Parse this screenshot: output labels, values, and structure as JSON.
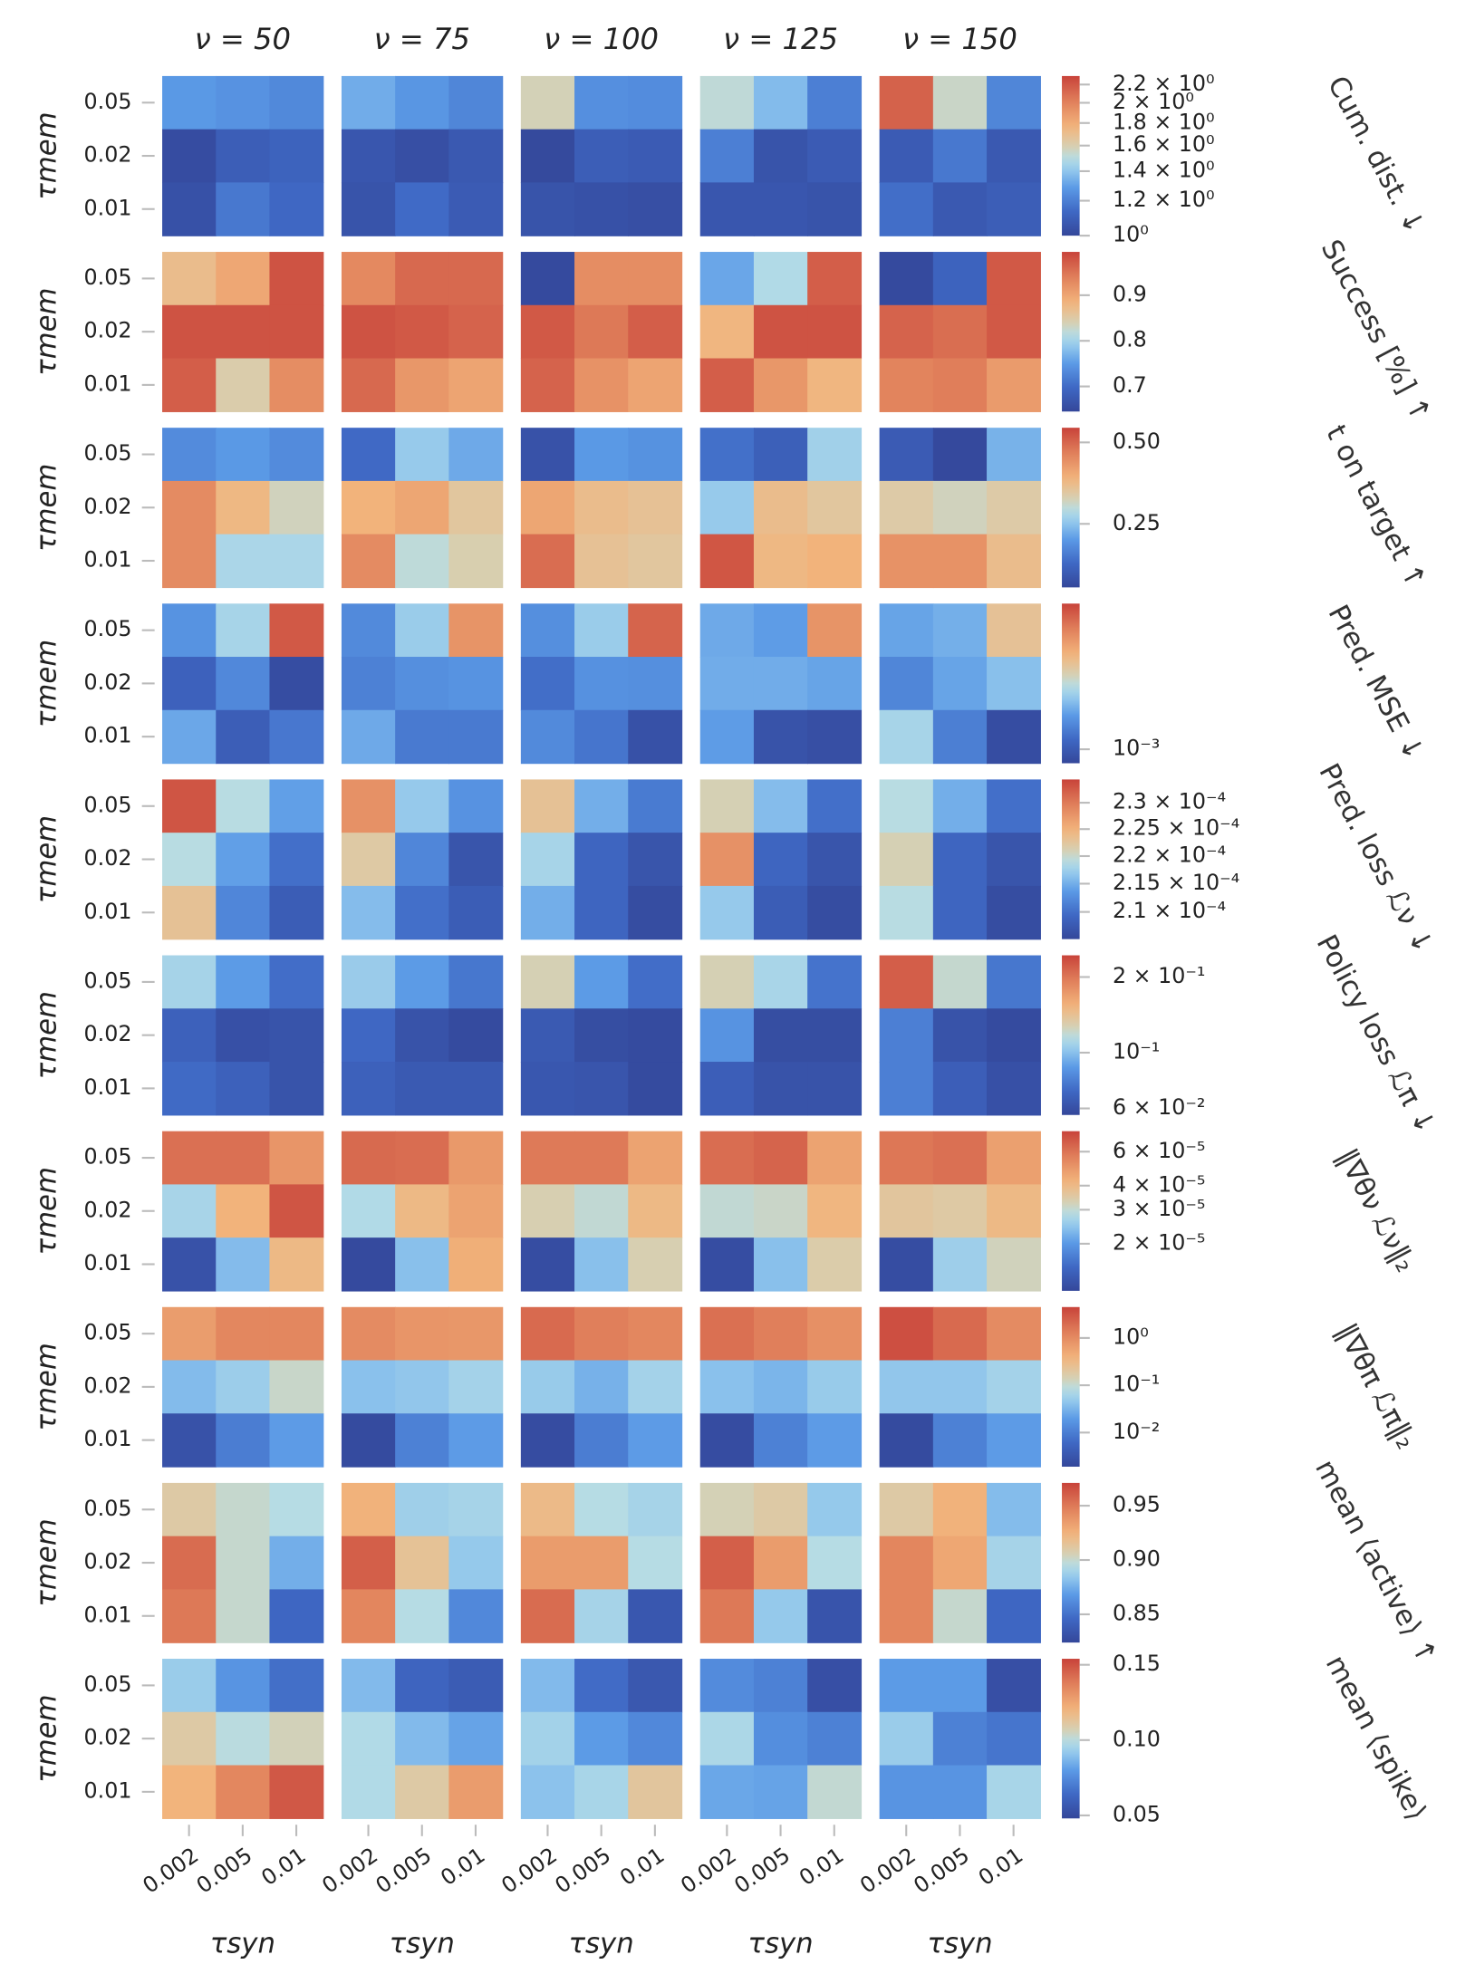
{
  "columns": [
    "ν = 50",
    "ν = 75",
    "ν = 100",
    "ν = 125",
    "ν = 150"
  ],
  "x_categories": [
    "0.002",
    "0.005",
    "0.01"
  ],
  "y_categories": [
    "0.05",
    "0.02",
    "0.01"
  ],
  "xlabel": "τsyn",
  "ylabel": "τmem",
  "chart_data": [
    {
      "type": "heatmap",
      "title": "Cum. dist. ↓",
      "log": true,
      "clim": [
        1,
        2.3
      ],
      "cticks": [
        {
          "value": 1,
          "label": "10⁰"
        },
        {
          "value": 1.2,
          "label": "1.2 × 10⁰"
        },
        {
          "value": 1.4,
          "label": "1.4 × 10⁰"
        },
        {
          "value": 1.6,
          "label": "1.6 × 10⁰"
        },
        {
          "value": 1.8,
          "label": "1.8 × 10⁰"
        },
        {
          "value": 2,
          "label": "2 × 10⁰"
        },
        {
          "value": 2.2,
          "label": "2.2 × 10⁰"
        }
      ],
      "panels": [
        [
          [
            1.28,
            1.26,
            1.23
          ],
          [
            1.02,
            1.09,
            1.11
          ],
          [
            1.04,
            1.18,
            1.13
          ]
        ],
        [
          [
            1.33,
            1.27,
            1.22
          ],
          [
            1.06,
            1.03,
            1.07
          ],
          [
            1.05,
            1.14,
            1.08
          ]
        ],
        [
          [
            1.58,
            1.25,
            1.24
          ],
          [
            1.01,
            1.09,
            1.08
          ],
          [
            1.05,
            1.04,
            1.03
          ]
        ],
        [
          [
            1.52,
            1.37,
            1.2
          ],
          [
            1.2,
            1.05,
            1.08
          ],
          [
            1.06,
            1.06,
            1.05
          ]
        ],
        [
          [
            2.15,
            1.55,
            1.22
          ],
          [
            1.08,
            1.18,
            1.07
          ],
          [
            1.15,
            1.07,
            1.09
          ]
        ]
      ]
    },
    {
      "type": "heatmap",
      "title": "Success [%] ↑",
      "log": false,
      "clim": [
        0.645,
        0.995
      ],
      "cticks": [
        0.7,
        0.8,
        0.9
      ],
      "panels": [
        [
          [
            0.87,
            0.897,
            0.98
          ],
          [
            0.98,
            0.98,
            0.98
          ],
          [
            0.97,
            0.845,
            0.925
          ]
        ],
        [
          [
            0.93,
            0.96,
            0.96
          ],
          [
            0.98,
            0.975,
            0.965
          ],
          [
            0.96,
            0.915,
            0.9
          ]
        ],
        [
          [
            0.65,
            0.925,
            0.925
          ],
          [
            0.975,
            0.945,
            0.97
          ],
          [
            0.965,
            0.92,
            0.9
          ]
        ],
        [
          [
            0.76,
            0.81,
            0.97
          ],
          [
            0.88,
            0.98,
            0.98
          ],
          [
            0.97,
            0.915,
            0.88
          ]
        ],
        [
          [
            0.65,
            0.69,
            0.975
          ],
          [
            0.965,
            0.955,
            0.975
          ],
          [
            0.935,
            0.94,
            0.91
          ]
        ]
      ]
    },
    {
      "type": "heatmap",
      "title": "t on target ↑",
      "log": false,
      "clim": [
        0.055,
        0.545
      ],
      "cticks": [
        0.25,
        {
          "value": 0.5,
          "label": "0.50"
        }
      ],
      "panels": [
        [
          [
            0.18,
            0.2,
            0.18
          ],
          [
            0.45,
            0.38,
            0.32
          ],
          [
            0.45,
            0.28,
            0.28
          ]
        ],
        [
          [
            0.13,
            0.26,
            0.22
          ],
          [
            0.39,
            0.41,
            0.35
          ],
          [
            0.45,
            0.3,
            0.33
          ]
        ],
        [
          [
            0.08,
            0.2,
            0.19
          ],
          [
            0.41,
            0.37,
            0.36
          ],
          [
            0.49,
            0.36,
            0.35
          ]
        ],
        [
          [
            0.14,
            0.11,
            0.27
          ],
          [
            0.26,
            0.37,
            0.35
          ],
          [
            0.52,
            0.38,
            0.39
          ]
        ],
        [
          [
            0.1,
            0.06,
            0.23
          ],
          [
            0.34,
            0.32,
            0.34
          ],
          [
            0.44,
            0.44,
            0.37
          ]
        ]
      ]
    },
    {
      "type": "heatmap",
      "title": "Pred. MSE ↓",
      "log": true,
      "clim": [
        0.0009,
        0.003
      ],
      "cticks": [
        {
          "value": 0.001,
          "label": "10⁻³"
        }
      ],
      "panels": [
        [
          [
            0.00126,
            0.00155,
            0.0028
          ],
          [
            0.00104,
            0.00121,
            0.00093
          ],
          [
            0.00134,
            0.00102,
            0.00114
          ]
        ],
        [
          [
            0.00122,
            0.0015,
            0.0023
          ],
          [
            0.00118,
            0.00124,
            0.00126
          ],
          [
            0.00135,
            0.00115,
            0.00115
          ]
        ],
        [
          [
            0.00124,
            0.0015,
            0.0027
          ],
          [
            0.0011,
            0.00125,
            0.00124
          ],
          [
            0.00122,
            0.00113,
            0.00095
          ]
        ],
        [
          [
            0.00135,
            0.0013,
            0.0023
          ],
          [
            0.00136,
            0.00136,
            0.00133
          ],
          [
            0.0013,
            0.00096,
            0.00094
          ]
        ],
        [
          [
            0.00133,
            0.00137,
            0.0019
          ],
          [
            0.0012,
            0.00133,
            0.00144
          ],
          [
            0.00155,
            0.00117,
            0.00093
          ]
        ]
      ]
    },
    {
      "type": "heatmap",
      "title": "Pred. loss ℒν ↓",
      "log": true,
      "clim": [
        0.0002053,
        0.0002345
      ],
      "cticks": [
        {
          "value": 0.00021,
          "label": "2.1 × 10⁻⁴"
        },
        {
          "value": 0.000215,
          "label": "2.15 × 10⁻⁴"
        },
        {
          "value": 0.00022,
          "label": "2.2 × 10⁻⁴"
        },
        {
          "value": 0.000225,
          "label": "2.25 × 10⁻⁴"
        },
        {
          "value": 0.00023,
          "label": "2.3 × 10⁻⁴"
        }
      ],
      "panels": [
        [
          [
            0.000233,
            0.000219,
            0.000214
          ],
          [
            0.000219,
            0.000214,
            0.00021
          ],
          [
            0.000223,
            0.000212,
            0.000208
          ]
        ],
        [
          [
            0.000228,
            0.000217,
            0.000213
          ],
          [
            0.000222,
            0.000212,
            0.000207
          ],
          [
            0.000216,
            0.00021,
            0.000208
          ]
        ],
        [
          [
            0.000223,
            0.000215,
            0.000211
          ],
          [
            0.000218,
            0.000209,
            0.000207
          ],
          [
            0.000215,
            0.000209,
            0.000206
          ]
        ],
        [
          [
            0.000221,
            0.000216,
            0.00021
          ],
          [
            0.000228,
            0.000209,
            0.000207
          ],
          [
            0.000217,
            0.000208,
            0.000206
          ]
        ],
        [
          [
            0.000219,
            0.000215,
            0.00021
          ],
          [
            0.000221,
            0.000209,
            0.000207
          ],
          [
            0.000219,
            0.000209,
            0.000206
          ]
        ]
      ]
    },
    {
      "type": "heatmap",
      "title": "Policy loss ℒπ ↓",
      "log": true,
      "clim": [
        0.0565,
        0.244
      ],
      "cticks": [
        {
          "value": 0.06,
          "label": "6 × 10⁻²"
        },
        {
          "value": 0.1,
          "label": "10⁻¹"
        },
        {
          "value": 0.2,
          "label": "2 × 10⁻¹"
        }
      ],
      "panels": [
        [
          [
            0.109,
            0.0878,
            0.072
          ],
          [
            0.067,
            0.06,
            0.0615
          ],
          [
            0.071,
            0.067,
            0.0615
          ]
        ],
        [
          [
            0.105,
            0.088,
            0.075
          ],
          [
            0.07,
            0.061,
            0.058
          ],
          [
            0.067,
            0.064,
            0.064
          ]
        ],
        [
          [
            0.127,
            0.088,
            0.072
          ],
          [
            0.064,
            0.059,
            0.058
          ],
          [
            0.063,
            0.062,
            0.058
          ]
        ],
        [
          [
            0.127,
            0.11,
            0.074
          ],
          [
            0.085,
            0.059,
            0.059
          ],
          [
            0.066,
            0.061,
            0.061
          ]
        ],
        [
          [
            0.22,
            0.12,
            0.075
          ],
          [
            0.078,
            0.061,
            0.058
          ],
          [
            0.078,
            0.066,
            0.06
          ]
        ]
      ]
    },
    {
      "type": "heatmap",
      "title": "‖∇θν ℒν‖₂",
      "log": true,
      "clim": [
        1.14e-05,
        7.66e-05
      ],
      "cticks": [
        {
          "value": 2e-05,
          "label": "2 × 10⁻⁵"
        },
        {
          "value": 3e-05,
          "label": "3 × 10⁻⁵"
        },
        {
          "value": 4e-05,
          "label": "4 × 10⁻⁵"
        },
        {
          "value": 6e-05,
          "label": "6 × 10⁻⁵"
        }
      ],
      "panels": [
        [
          [
            6.1e-05,
            6.1e-05,
            5e-05
          ],
          [
            2.7e-05,
            4.2e-05,
            7e-05
          ],
          [
            1.25e-05,
            2.35e-05,
            4e-05
          ]
        ],
        [
          [
            6.3e-05,
            6.2e-05,
            4.9e-05
          ],
          [
            2.8e-05,
            4e-05,
            4.6e-05
          ],
          [
            1.17e-05,
            2.4e-05,
            4.3e-05
          ]
        ],
        [
          [
            5.8e-05,
            5.8e-05,
            4.6e-05
          ],
          [
            3.3e-05,
            3e-05,
            4e-05
          ],
          [
            1.2e-05,
            2.4e-05,
            3.3e-05
          ]
        ],
        [
          [
            6.2e-05,
            6.5e-05,
            4.6e-05
          ],
          [
            3e-05,
            3.1e-05,
            4.1e-05
          ],
          [
            1.2e-05,
            2.4e-05,
            3.4e-05
          ]
        ],
        [
          [
            5.9e-05,
            6.1e-05,
            4.7e-05
          ],
          [
            3.6e-05,
            3.5e-05,
            4e-05
          ],
          [
            1.2e-05,
            2.6e-05,
            3.2e-05
          ]
        ]
      ]
    },
    {
      "type": "heatmap",
      "title": "‖∇θπ ℒπ‖₂",
      "log": true,
      "clim": [
        0.0019,
        4.5
      ],
      "cticks": [
        {
          "value": 0.01,
          "label": "10⁻²"
        },
        {
          "value": 0.1,
          "label": "10⁻¹"
        },
        {
          "value": 1,
          "label": "10⁰"
        }
      ],
      "panels": [
        [
          [
            0.65,
            1.1,
            1.1
          ],
          [
            0.036,
            0.053,
            0.11
          ],
          [
            0.0028,
            0.01,
            0.02
          ]
        ],
        [
          [
            1.0,
            0.8,
            0.75
          ],
          [
            0.04,
            0.045,
            0.06
          ],
          [
            0.0022,
            0.011,
            0.02
          ]
        ],
        [
          [
            2.0,
            1.3,
            1.1
          ],
          [
            0.05,
            0.03,
            0.06
          ],
          [
            0.0023,
            0.01,
            0.02
          ]
        ],
        [
          [
            1.8,
            1.3,
            0.9
          ],
          [
            0.04,
            0.032,
            0.05
          ],
          [
            0.0023,
            0.011,
            0.02
          ]
        ],
        [
          [
            3.5,
            2.0,
            1.0
          ],
          [
            0.045,
            0.045,
            0.06
          ],
          [
            0.0022,
            0.011,
            0.02
          ]
        ]
      ]
    },
    {
      "type": "heatmap",
      "title": "mean ⟨active⟩ ↑",
      "log": false,
      "clim": [
        0.824,
        0.971
      ],
      "cticks": [
        0.85,
        {
          "value": 0.9,
          "label": "0.90"
        },
        0.95
      ],
      "panels": [
        [
          [
            0.91,
            0.9,
            0.895
          ],
          [
            0.955,
            0.9,
            0.875
          ],
          [
            0.95,
            0.9,
            0.845
          ]
        ],
        [
          [
            0.925,
            0.888,
            0.89
          ],
          [
            0.96,
            0.915,
            0.885
          ],
          [
            0.945,
            0.895,
            0.86
          ]
        ],
        [
          [
            0.92,
            0.895,
            0.89
          ],
          [
            0.935,
            0.935,
            0.895
          ],
          [
            0.955,
            0.89,
            0.835
          ]
        ],
        [
          [
            0.905,
            0.91,
            0.885
          ],
          [
            0.96,
            0.935,
            0.895
          ],
          [
            0.95,
            0.885,
            0.833
          ]
        ],
        [
          [
            0.91,
            0.925,
            0.88
          ],
          [
            0.945,
            0.93,
            0.89
          ],
          [
            0.945,
            0.9,
            0.845
          ]
        ]
      ]
    },
    {
      "type": "heatmap",
      "title": "mean ⟨spike⟩",
      "log": false,
      "clim": [
        0.048,
        0.154
      ],
      "cticks": [
        0.05,
        {
          "value": 0.1,
          "label": "0.10"
        },
        0.15
      ],
      "panels": [
        [
          [
            0.093,
            0.078,
            0.066
          ],
          [
            0.11,
            0.1,
            0.106
          ],
          [
            0.12,
            0.135,
            0.148
          ]
        ],
        [
          [
            0.088,
            0.062,
            0.058
          ],
          [
            0.098,
            0.088,
            0.082
          ],
          [
            0.098,
            0.11,
            0.128
          ]
        ],
        [
          [
            0.088,
            0.065,
            0.056
          ],
          [
            0.095,
            0.08,
            0.074
          ],
          [
            0.09,
            0.096,
            0.112
          ]
        ],
        [
          [
            0.075,
            0.072,
            0.052
          ],
          [
            0.097,
            0.076,
            0.072
          ],
          [
            0.083,
            0.082,
            0.102
          ]
        ],
        [
          [
            0.08,
            0.08,
            0.052
          ],
          [
            0.093,
            0.072,
            0.068
          ],
          [
            0.078,
            0.078,
            0.096
          ]
        ]
      ]
    }
  ]
}
